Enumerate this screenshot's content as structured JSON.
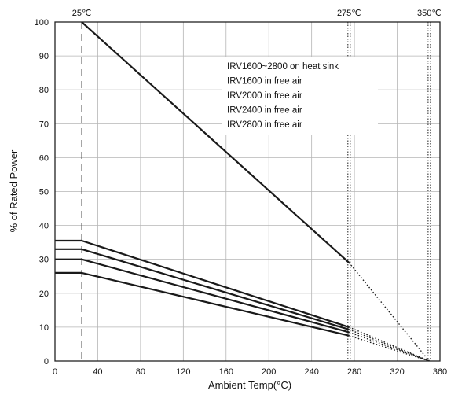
{
  "chart_data": {
    "type": "line",
    "title": "",
    "xlabel": "Ambient Temp(°C)",
    "ylabel": "% of Rated Power",
    "xlim": [
      0,
      360
    ],
    "ylim": [
      0,
      100
    ],
    "x_ticks": [
      "0",
      "40",
      "80",
      "120",
      "160",
      "200",
      "240",
      "280",
      "320",
      "360"
    ],
    "y_ticks": [
      "0",
      "10",
      "20",
      "30",
      "40",
      "50",
      "60",
      "70",
      "80",
      "90",
      "100"
    ],
    "grid": true,
    "reference_lines": [
      {
        "label": "25℃",
        "x": 25,
        "style": "dashed"
      },
      {
        "label": "275℃",
        "x": 275,
        "style": "dotted"
      },
      {
        "label": "350℃",
        "x": 350,
        "style": "dotted"
      }
    ],
    "legend": [
      "IRV1600~2800 on heat sink",
      "IRV1600 in free air",
      "IRV2000 in free air",
      "IRV2400 in free air",
      "IRV2800 in free air"
    ],
    "series": [
      {
        "name": "IRV1600~2800 on heat sink",
        "solid": [
          [
            25,
            100
          ],
          [
            275,
            29
          ]
        ],
        "dotted": [
          [
            275,
            29
          ],
          [
            350,
            0
          ]
        ]
      },
      {
        "name": "IRV1600 in free air",
        "solid": [
          [
            0,
            26
          ],
          [
            25,
            26
          ],
          [
            275,
            7.5
          ]
        ],
        "dotted": [
          [
            275,
            7.5
          ],
          [
            350,
            0
          ]
        ]
      },
      {
        "name": "IRV2000 in free air",
        "solid": [
          [
            0,
            30
          ],
          [
            25,
            30
          ],
          [
            275,
            8.5
          ]
        ],
        "dotted": [
          [
            275,
            8.5
          ],
          [
            350,
            0
          ]
        ]
      },
      {
        "name": "IRV2400 in free air",
        "solid": [
          [
            0,
            33
          ],
          [
            25,
            33
          ],
          [
            275,
            9.3
          ]
        ],
        "dotted": [
          [
            275,
            9.3
          ],
          [
            350,
            0
          ]
        ]
      },
      {
        "name": "IRV2800 in free air",
        "solid": [
          [
            0,
            35.5
          ],
          [
            25,
            35.5
          ],
          [
            275,
            10
          ]
        ],
        "dotted": [
          [
            275,
            10
          ],
          [
            350,
            0
          ]
        ]
      }
    ]
  }
}
